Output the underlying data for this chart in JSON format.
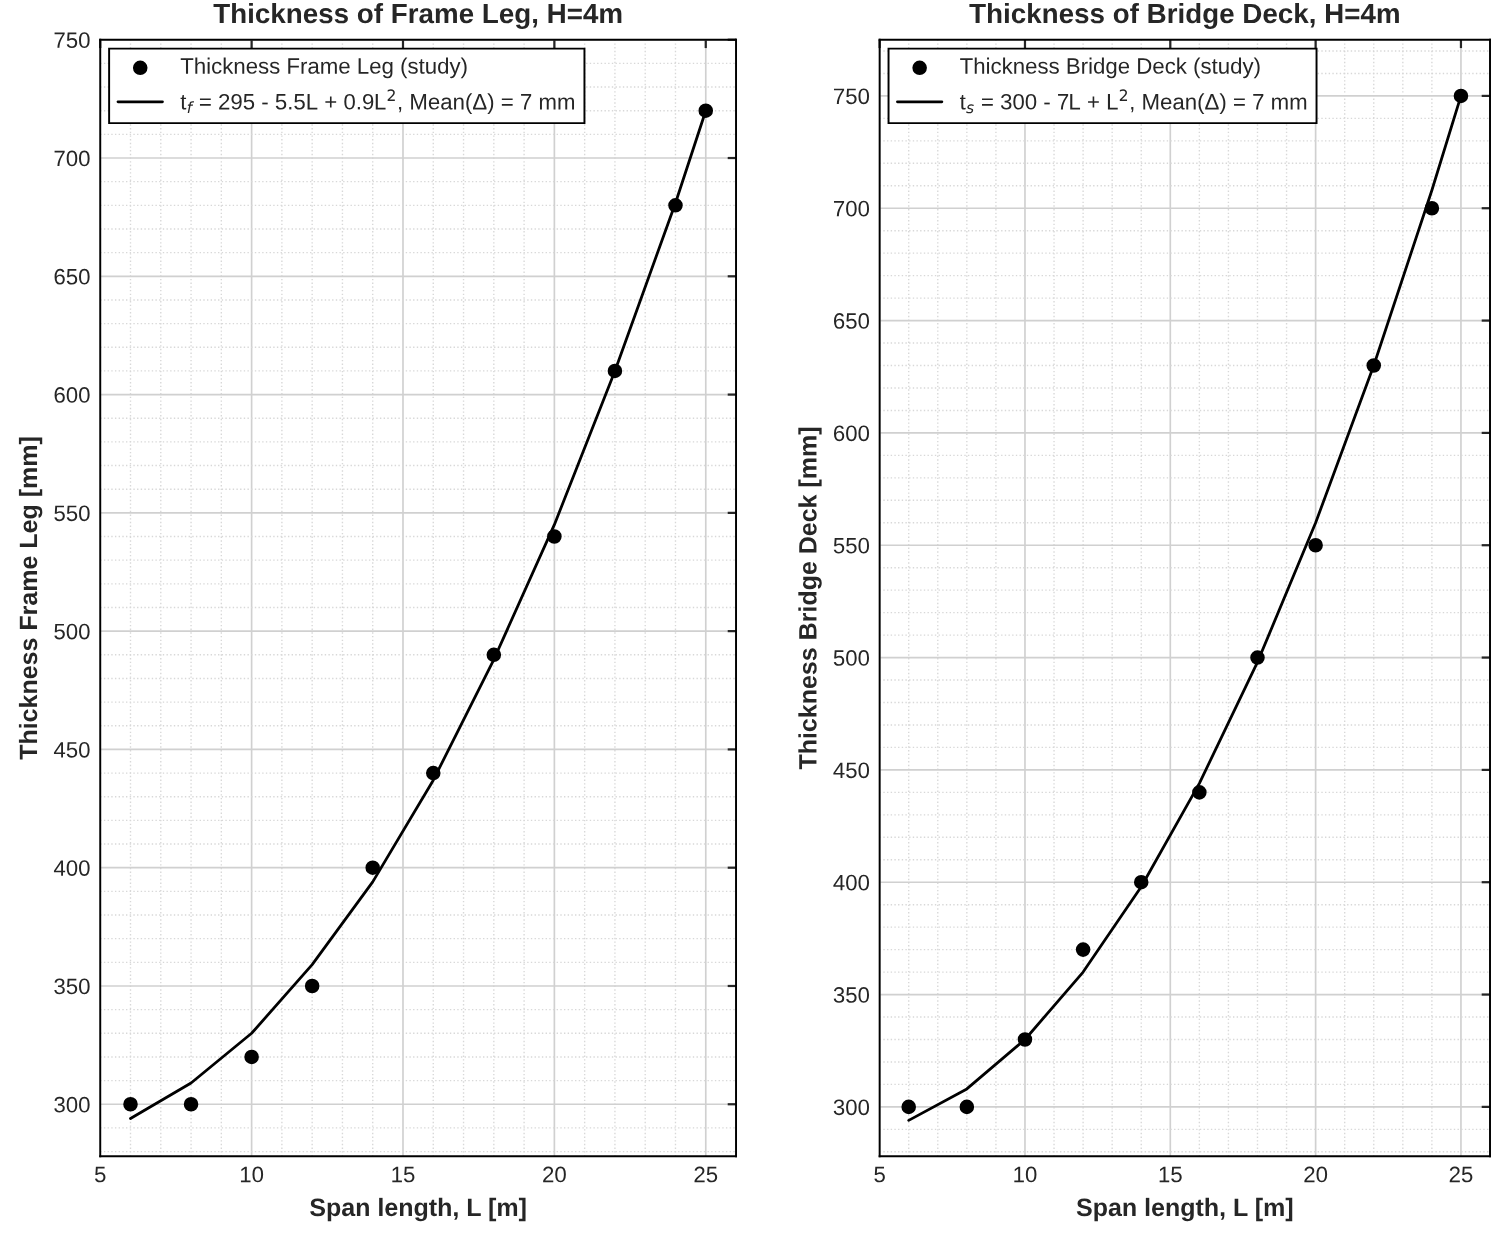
{
  "chart_data": [
    {
      "type": "scatter",
      "title": "Thickness of Frame Leg, H=4m",
      "xlabel": "Span length, L [m]",
      "ylabel": "Thickness Frame Leg [mm]",
      "xlim": [
        5,
        26
      ],
      "xticks": [
        5,
        10,
        15,
        20,
        25
      ],
      "ylim": [
        278,
        750
      ],
      "yticks": [
        300,
        350,
        400,
        450,
        500,
        550,
        600,
        650,
        700,
        750
      ],
      "grid": true,
      "legend": "top left",
      "series": [
        {
          "name": "Thickness Frame Leg (study)",
          "marker": "circle",
          "color": "#000000",
          "x": [
            6,
            8,
            10,
            12,
            14,
            16,
            18,
            20,
            22,
            24,
            25
          ],
          "values": [
            300,
            300,
            320,
            350,
            400,
            440,
            490,
            540,
            610,
            680,
            720
          ]
        },
        {
          "name": "t$_{f}$ = 295 - 5.5L + 0.9L$^{2}$, Mean(Δ) = 7 mm",
          "type": "line",
          "line_style": "solid",
          "color": "#000000",
          "x": [
            6,
            8,
            10,
            12,
            14,
            16,
            18,
            20,
            22,
            24,
            25
          ],
          "values": [
            294,
            309,
            330,
            359,
            394,
            437,
            488,
            545,
            610,
            681,
            720
          ]
        }
      ]
    },
    {
      "type": "scatter",
      "title": "Thickness of Bridge Deck, H=4m",
      "xlabel": "Span length, L [m]",
      "ylabel": "Thickness Bridge Deck [mm]",
      "xlim": [
        5,
        26
      ],
      "xticks": [
        5,
        10,
        15,
        20,
        25
      ],
      "ylim": [
        278,
        775
      ],
      "yticks": [
        300,
        350,
        400,
        450,
        500,
        550,
        600,
        650,
        700,
        750
      ],
      "grid": true,
      "legend": "top left",
      "series": [
        {
          "name": "Thickness Bridge Deck (study)",
          "marker": "circle",
          "color": "#000000",
          "x": [
            6,
            8,
            10,
            12,
            14,
            16,
            18,
            20,
            22,
            24,
            25
          ],
          "values": [
            300,
            300,
            330,
            370,
            400,
            440,
            500,
            550,
            630,
            700,
            750
          ]
        },
        {
          "name": "t$_{s}$ = 300 - 7L + L$^{2}$, Mean(Δ) = 7 mm",
          "type": "line",
          "line_style": "solid",
          "color": "#000000",
          "x": [
            6,
            8,
            10,
            12,
            14,
            16,
            18,
            20,
            22,
            24,
            25
          ],
          "values": [
            294,
            308,
            330,
            360,
            398,
            444,
            498,
            560,
            630,
            708,
            750
          ]
        }
      ]
    }
  ]
}
